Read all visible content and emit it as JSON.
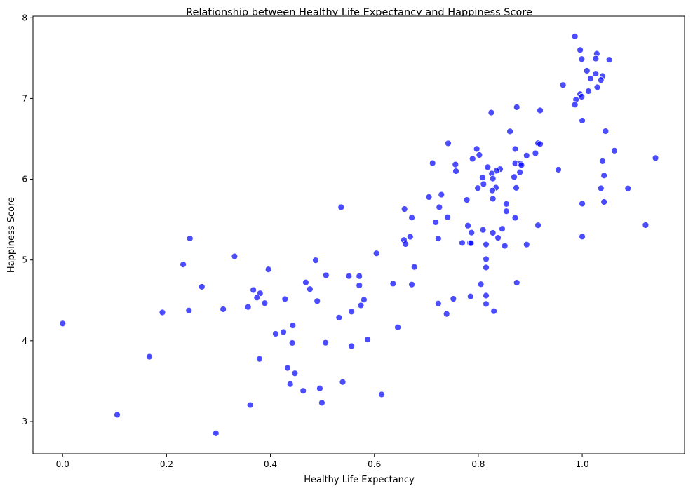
{
  "chart_data": {
    "type": "scatter",
    "title": "Relationship between Healthy Life Expectancy and Happiness Score",
    "xlabel": "Healthy Life Expectancy",
    "ylabel": "Happiness Score",
    "xlim": [
      -0.057,
      1.197
    ],
    "ylim": [
      2.6,
      8.02
    ],
    "xticks": [
      {
        "value": 0.0,
        "label": "0.0"
      },
      {
        "value": 0.2,
        "label": "0.2"
      },
      {
        "value": 0.4,
        "label": "0.4"
      },
      {
        "value": 0.6,
        "label": "0.6"
      },
      {
        "value": 0.8,
        "label": "0.8"
      },
      {
        "value": 1.0,
        "label": "1.0"
      }
    ],
    "yticks": [
      {
        "value": 3,
        "label": "3"
      },
      {
        "value": 4,
        "label": "4"
      },
      {
        "value": 5,
        "label": "5"
      },
      {
        "value": 6,
        "label": "6"
      },
      {
        "value": 7,
        "label": "7"
      },
      {
        "value": 8,
        "label": "8"
      }
    ],
    "grid": false,
    "legend": "none",
    "marker_color": "#0000ff",
    "marker_edge_color": "#ffffff",
    "marker_opacity": 0.7,
    "points": [
      {
        "x": 0.986,
        "y": 7.769
      },
      {
        "x": 0.996,
        "y": 7.6
      },
      {
        "x": 1.028,
        "y": 7.554
      },
      {
        "x": 1.026,
        "y": 7.494
      },
      {
        "x": 0.999,
        "y": 7.488
      },
      {
        "x": 1.052,
        "y": 7.48
      },
      {
        "x": 1.009,
        "y": 7.343
      },
      {
        "x": 1.026,
        "y": 7.307
      },
      {
        "x": 1.039,
        "y": 7.278
      },
      {
        "x": 1.016,
        "y": 7.246
      },
      {
        "x": 1.036,
        "y": 7.228
      },
      {
        "x": 0.963,
        "y": 7.167
      },
      {
        "x": 1.029,
        "y": 7.139
      },
      {
        "x": 1.012,
        "y": 7.09
      },
      {
        "x": 0.996,
        "y": 7.054
      },
      {
        "x": 0.999,
        "y": 7.021
      },
      {
        "x": 0.988,
        "y": 6.985
      },
      {
        "x": 0.986,
        "y": 6.923
      },
      {
        "x": 0.874,
        "y": 6.892
      },
      {
        "x": 0.919,
        "y": 6.852
      },
      {
        "x": 0.825,
        "y": 6.825
      },
      {
        "x": 1.0,
        "y": 6.726
      },
      {
        "x": 1.045,
        "y": 6.595
      },
      {
        "x": 0.861,
        "y": 6.592
      },
      {
        "x": 0.742,
        "y": 6.444
      },
      {
        "x": 0.915,
        "y": 6.446
      },
      {
        "x": 0.919,
        "y": 6.436
      },
      {
        "x": 0.797,
        "y": 6.375
      },
      {
        "x": 0.871,
        "y": 6.374
      },
      {
        "x": 1.062,
        "y": 6.354
      },
      {
        "x": 0.91,
        "y": 6.321
      },
      {
        "x": 0.802,
        "y": 6.3
      },
      {
        "x": 0.893,
        "y": 6.293
      },
      {
        "x": 1.141,
        "y": 6.262
      },
      {
        "x": 0.789,
        "y": 6.253
      },
      {
        "x": 1.039,
        "y": 6.223
      },
      {
        "x": 0.712,
        "y": 6.199
      },
      {
        "x": 0.871,
        "y": 6.198
      },
      {
        "x": 0.881,
        "y": 6.192
      },
      {
        "x": 0.756,
        "y": 6.182
      },
      {
        "x": 0.883,
        "y": 6.174
      },
      {
        "x": 0.818,
        "y": 6.149
      },
      {
        "x": 0.842,
        "y": 6.125
      },
      {
        "x": 0.954,
        "y": 6.118
      },
      {
        "x": 0.835,
        "y": 6.105
      },
      {
        "x": 0.757,
        "y": 6.1
      },
      {
        "x": 0.88,
        "y": 6.086
      },
      {
        "x": 0.826,
        "y": 6.07
      },
      {
        "x": 1.042,
        "y": 6.046
      },
      {
        "x": 0.869,
        "y": 6.028
      },
      {
        "x": 0.808,
        "y": 6.021
      },
      {
        "x": 0.828,
        "y": 6.008
      },
      {
        "x": 0.81,
        "y": 5.94
      },
      {
        "x": 0.834,
        "y": 5.895
      },
      {
        "x": 0.873,
        "y": 5.893
      },
      {
        "x": 0.799,
        "y": 5.89
      },
      {
        "x": 1.036,
        "y": 5.888
      },
      {
        "x": 1.088,
        "y": 5.886
      },
      {
        "x": 0.827,
        "y": 5.86
      },
      {
        "x": 0.729,
        "y": 5.809
      },
      {
        "x": 0.705,
        "y": 5.779
      },
      {
        "x": 0.828,
        "y": 5.758
      },
      {
        "x": 0.778,
        "y": 5.743
      },
      {
        "x": 1.042,
        "y": 5.718
      },
      {
        "x": 1.0,
        "y": 5.697
      },
      {
        "x": 0.854,
        "y": 5.693
      },
      {
        "x": 0.536,
        "y": 5.653
      },
      {
        "x": 0.725,
        "y": 5.653
      },
      {
        "x": 0.658,
        "y": 5.631
      },
      {
        "x": 0.854,
        "y": 5.603
      },
      {
        "x": 0.741,
        "y": 5.529
      },
      {
        "x": 0.672,
        "y": 5.525
      },
      {
        "x": 0.871,
        "y": 5.523
      },
      {
        "x": 0.718,
        "y": 5.467
      },
      {
        "x": 1.122,
        "y": 5.432
      },
      {
        "x": 0.915,
        "y": 5.43
      },
      {
        "x": 0.78,
        "y": 5.425
      },
      {
        "x": 0.846,
        "y": 5.386
      },
      {
        "x": 0.809,
        "y": 5.373
      },
      {
        "x": 0.787,
        "y": 5.339
      },
      {
        "x": 0.828,
        "y": 5.336
      },
      {
        "x": 1.0,
        "y": 5.29
      },
      {
        "x": 0.669,
        "y": 5.287
      },
      {
        "x": 0.245,
        "y": 5.267
      },
      {
        "x": 0.838,
        "y": 5.274
      },
      {
        "x": 0.723,
        "y": 5.265
      },
      {
        "x": 0.657,
        "y": 5.247
      },
      {
        "x": 0.769,
        "y": 5.211
      },
      {
        "x": 0.784,
        "y": 5.211
      },
      {
        "x": 0.786,
        "y": 5.208
      },
      {
        "x": 0.66,
        "y": 5.197
      },
      {
        "x": 0.815,
        "y": 5.192
      },
      {
        "x": 0.893,
        "y": 5.191
      },
      {
        "x": 0.851,
        "y": 5.175
      },
      {
        "x": 0.604,
        "y": 5.082
      },
      {
        "x": 0.331,
        "y": 5.044
      },
      {
        "x": 0.815,
        "y": 5.011
      },
      {
        "x": 0.487,
        "y": 4.996
      },
      {
        "x": 0.677,
        "y": 4.913
      },
      {
        "x": 0.815,
        "y": 4.906
      },
      {
        "x": 0.232,
        "y": 4.944
      },
      {
        "x": 0.396,
        "y": 4.883
      },
      {
        "x": 0.507,
        "y": 4.81
      },
      {
        "x": 0.551,
        "y": 4.8
      },
      {
        "x": 0.571,
        "y": 4.799
      },
      {
        "x": 0.874,
        "y": 4.719
      },
      {
        "x": 0.468,
        "y": 4.722
      },
      {
        "x": 0.636,
        "y": 4.707
      },
      {
        "x": 0.805,
        "y": 4.7
      },
      {
        "x": 0.672,
        "y": 4.696
      },
      {
        "x": 0.571,
        "y": 4.685
      },
      {
        "x": 0.268,
        "y": 4.668
      },
      {
        "x": 0.476,
        "y": 4.639
      },
      {
        "x": 0.367,
        "y": 4.628
      },
      {
        "x": 0.38,
        "y": 4.587
      },
      {
        "x": 0.815,
        "y": 4.559
      },
      {
        "x": 0.374,
        "y": 4.534
      },
      {
        "x": 0.785,
        "y": 4.548
      },
      {
        "x": 0.752,
        "y": 4.519
      },
      {
        "x": 0.428,
        "y": 4.516
      },
      {
        "x": 0.58,
        "y": 4.509
      },
      {
        "x": 0.49,
        "y": 4.49
      },
      {
        "x": 0.389,
        "y": 4.466
      },
      {
        "x": 0.723,
        "y": 4.461
      },
      {
        "x": 0.815,
        "y": 4.456
      },
      {
        "x": 0.574,
        "y": 4.437
      },
      {
        "x": 0.357,
        "y": 4.418
      },
      {
        "x": 0.309,
        "y": 4.39
      },
      {
        "x": 0.243,
        "y": 4.374
      },
      {
        "x": 0.83,
        "y": 4.366
      },
      {
        "x": 0.556,
        "y": 4.36
      },
      {
        "x": 0.192,
        "y": 4.35
      },
      {
        "x": 0.739,
        "y": 4.332
      },
      {
        "x": 0.532,
        "y": 4.286
      },
      {
        "x": 0.0,
        "y": 4.212
      },
      {
        "x": 0.443,
        "y": 4.189
      },
      {
        "x": 0.645,
        "y": 4.166
      },
      {
        "x": 0.425,
        "y": 4.107
      },
      {
        "x": 0.41,
        "y": 4.085
      },
      {
        "x": 0.587,
        "y": 4.015
      },
      {
        "x": 0.506,
        "y": 3.975
      },
      {
        "x": 0.442,
        "y": 3.973
      },
      {
        "x": 0.556,
        "y": 3.933
      },
      {
        "x": 0.167,
        "y": 3.802
      },
      {
        "x": 0.379,
        "y": 3.775
      },
      {
        "x": 0.433,
        "y": 3.663
      },
      {
        "x": 0.447,
        "y": 3.597
      },
      {
        "x": 0.539,
        "y": 3.488
      },
      {
        "x": 0.438,
        "y": 3.462
      },
      {
        "x": 0.495,
        "y": 3.41
      },
      {
        "x": 0.463,
        "y": 3.38
      },
      {
        "x": 0.614,
        "y": 3.334
      },
      {
        "x": 0.499,
        "y": 3.231
      },
      {
        "x": 0.361,
        "y": 3.203
      },
      {
        "x": 0.105,
        "y": 3.083
      },
      {
        "x": 0.295,
        "y": 2.853
      }
    ]
  }
}
